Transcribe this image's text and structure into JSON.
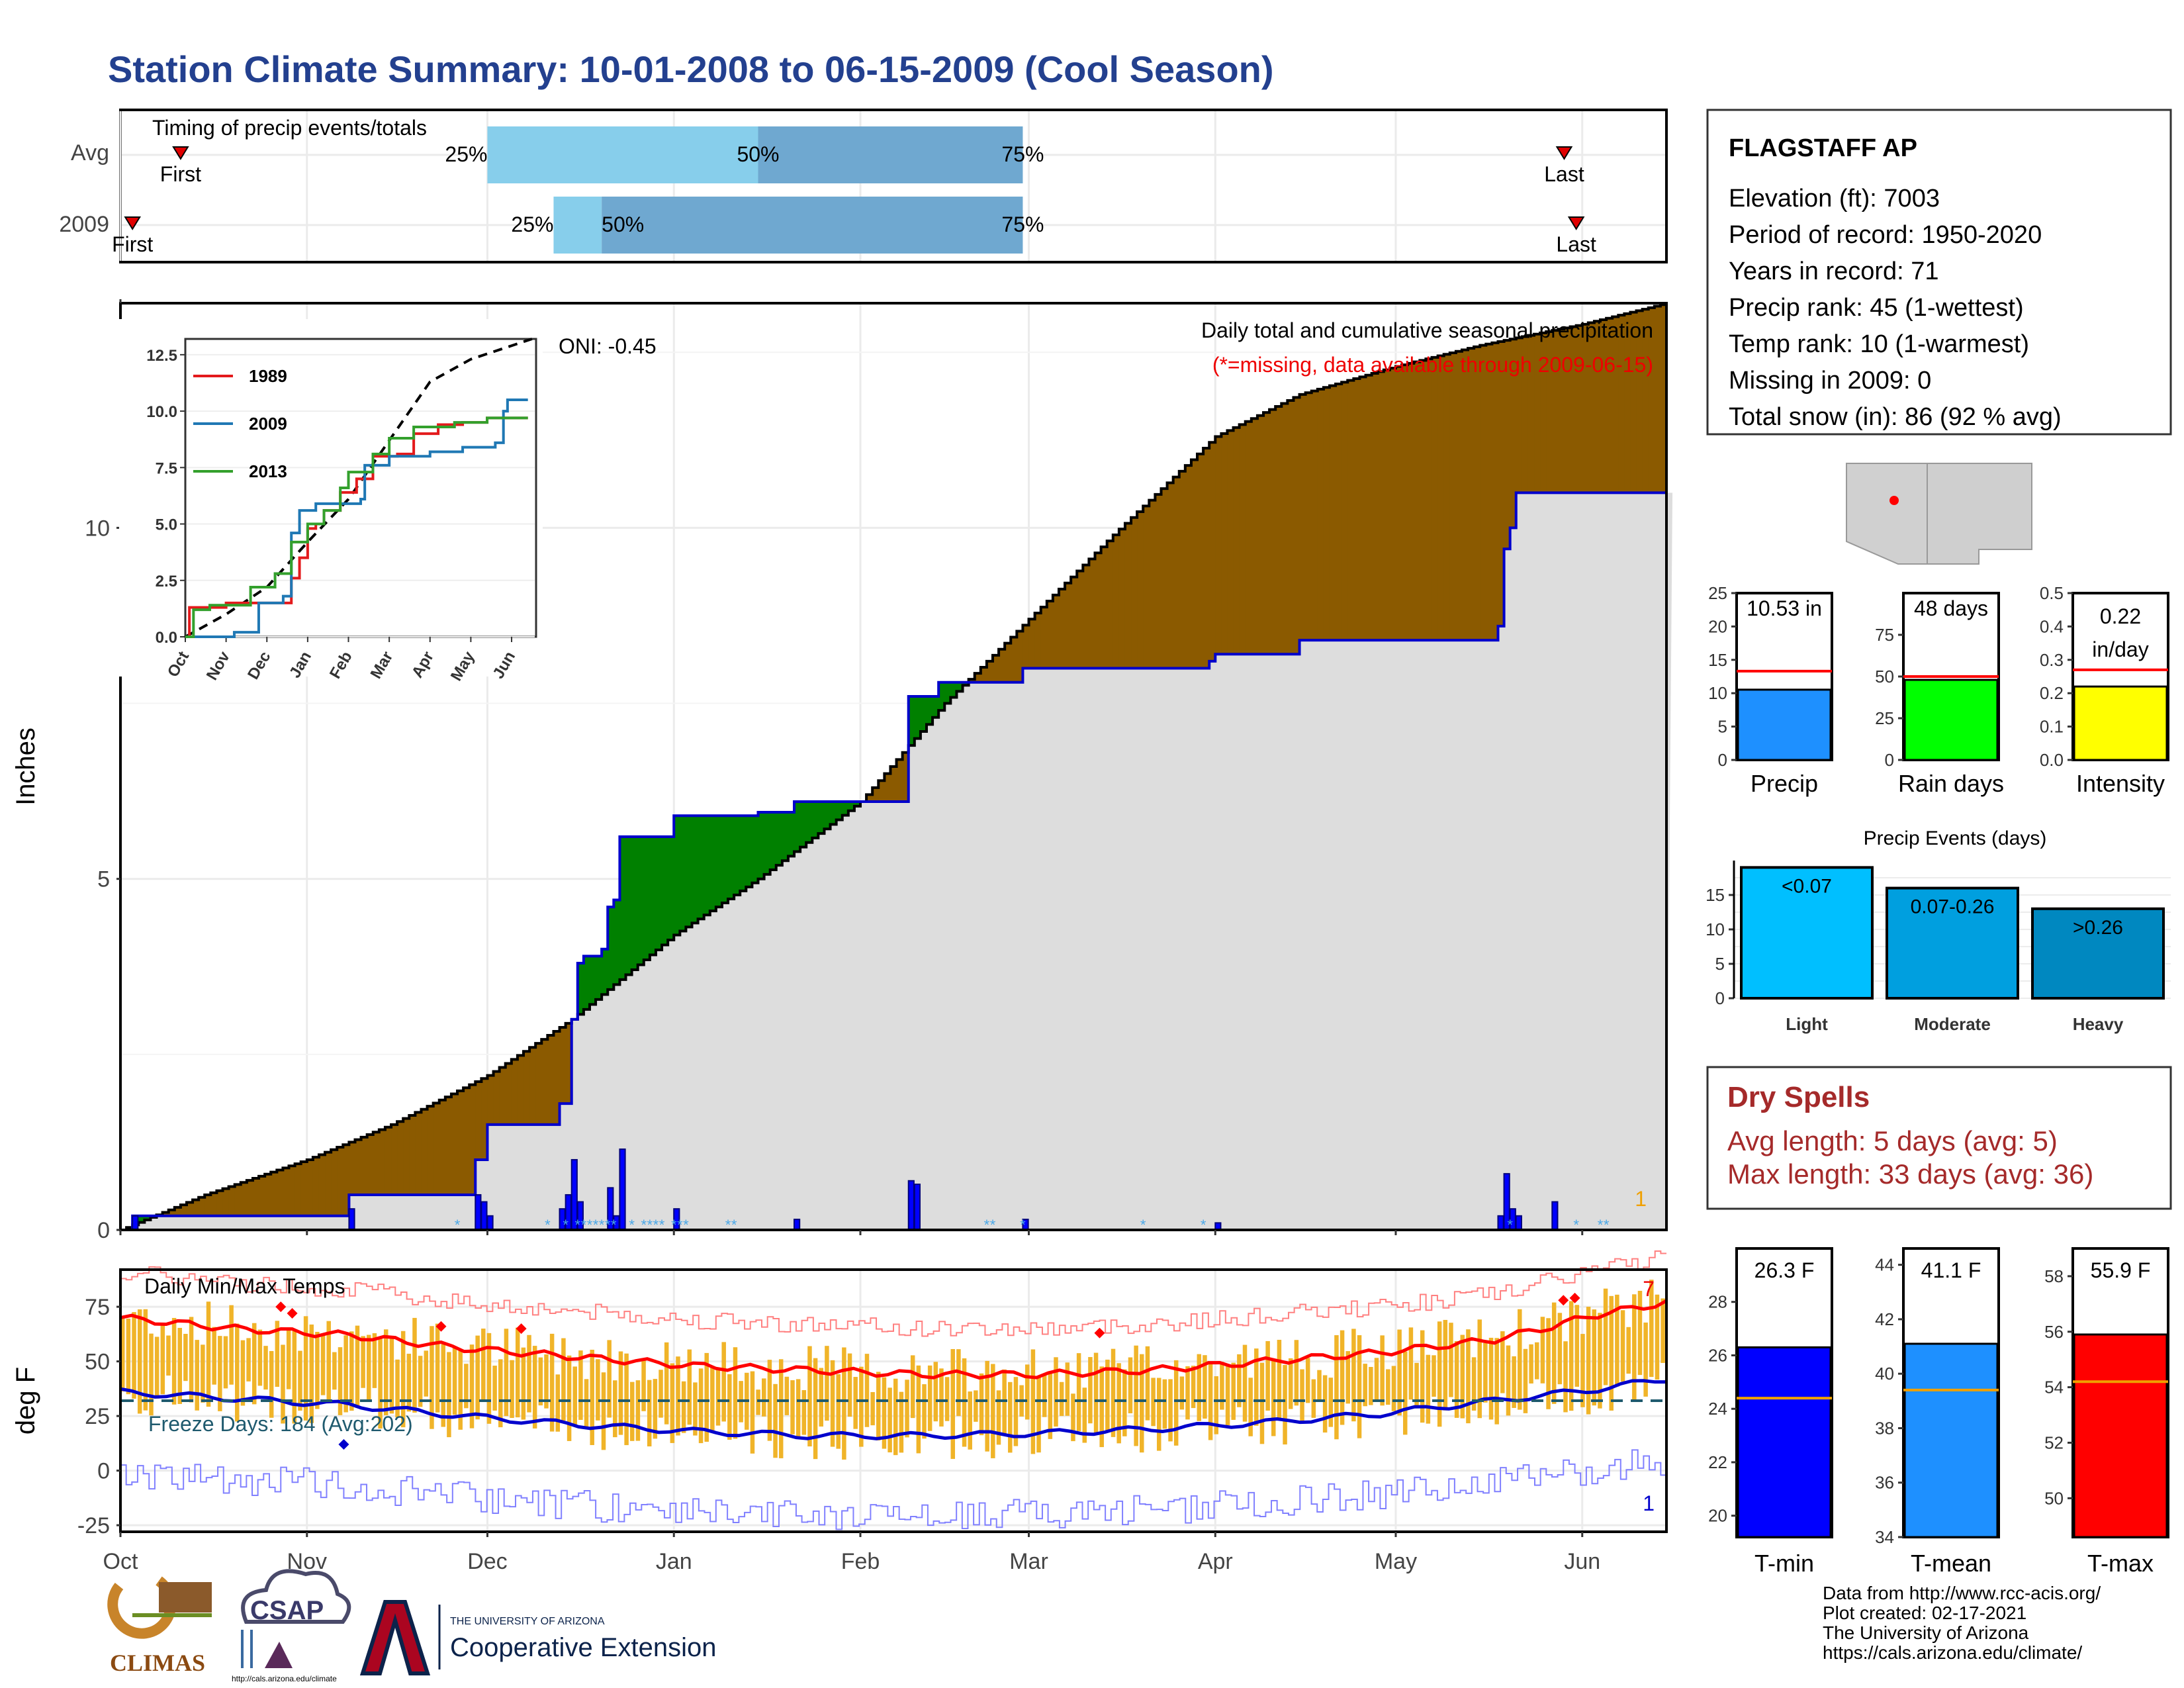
{
  "title": "Station Climate Summary: 10-01-2008 to 06-15-2009 (Cool Season)",
  "timing": {
    "label": "Timing of precip events/totals",
    "rows": [
      {
        "name": "Avg",
        "first_label": "First",
        "last_label": "Last",
        "first_date": "2008-10-11",
        "last_date": "2009-05-29",
        "q25": "2008-12-01",
        "q50": "2009-01-15",
        "q75": "2009-02-28",
        "p25_label": "25%",
        "p50_label": "50%",
        "p75_label": "75%"
      },
      {
        "name": "2009",
        "first_label": "First",
        "last_label": "Last",
        "first_date": "2008-10-03",
        "last_date": "2009-05-31",
        "q25": "2008-12-12",
        "q50": "2008-12-20",
        "q75": "2009-02-28",
        "p25_label": "25%",
        "p50_label": "50%",
        "p75_label": "75%"
      }
    ],
    "colors": {
      "early": "#87ceeb",
      "late": "#6fa8d0",
      "marker": "#e00000"
    }
  },
  "precip": {
    "ylabel": "Inches",
    "y_ticks": [
      "0",
      "5",
      "10"
    ],
    "x_ticks": [
      "Oct",
      "Nov",
      "Dec",
      "Jan",
      "Feb",
      "Mar",
      "Apr",
      "May",
      "Jun"
    ],
    "annot_title": "Daily total and cumulative seasonal precipitation",
    "annot_missing": "(*=missing, data available through 2009-06-15)",
    "oni": "ONI: -0.45",
    "corner_label": "1",
    "colors": {
      "deficit": "#8b5a00",
      "surplus": "#008000",
      "observed": "#dddddd",
      "line": "#0000cc",
      "daily": "#0000ff"
    },
    "chart_data": {
      "type": "area",
      "x_range": [
        "2008-10-01",
        "2009-06-15"
      ],
      "y_range": [
        0,
        13.2
      ],
      "avg_cumulative": [
        {
          "x": "2008-10-01",
          "y": 0.0
        },
        {
          "x": "2008-10-15",
          "y": 0.5
        },
        {
          "x": "2008-11-01",
          "y": 1.0
        },
        {
          "x": "2008-11-15",
          "y": 1.5
        },
        {
          "x": "2008-12-01",
          "y": 2.2
        },
        {
          "x": "2008-12-15",
          "y": 3.0
        },
        {
          "x": "2009-01-01",
          "y": 4.2
        },
        {
          "x": "2009-01-15",
          "y": 5.0
        },
        {
          "x": "2009-02-01",
          "y": 6.1
        },
        {
          "x": "2009-02-15",
          "y": 7.5
        },
        {
          "x": "2009-03-01",
          "y": 8.7
        },
        {
          "x": "2009-03-15",
          "y": 9.9
        },
        {
          "x": "2009-04-01",
          "y": 11.3
        },
        {
          "x": "2009-04-15",
          "y": 11.9
        },
        {
          "x": "2009-05-01",
          "y": 12.3
        },
        {
          "x": "2009-05-15",
          "y": 12.6
        },
        {
          "x": "2009-06-01",
          "y": 12.9
        },
        {
          "x": "2009-06-15",
          "y": 13.2
        }
      ],
      "cumulative_2009": [
        {
          "x": "2008-10-01",
          "y": 0.0
        },
        {
          "x": "2008-10-03",
          "y": 0.2
        },
        {
          "x": "2008-11-07",
          "y": 0.2
        },
        {
          "x": "2008-11-08",
          "y": 0.5
        },
        {
          "x": "2008-11-28",
          "y": 0.5
        },
        {
          "x": "2008-11-29",
          "y": 1.0
        },
        {
          "x": "2008-12-01",
          "y": 1.5
        },
        {
          "x": "2008-12-12",
          "y": 1.5
        },
        {
          "x": "2008-12-13",
          "y": 1.8
        },
        {
          "x": "2008-12-15",
          "y": 3.0
        },
        {
          "x": "2008-12-16",
          "y": 3.8
        },
        {
          "x": "2008-12-17",
          "y": 3.9
        },
        {
          "x": "2008-12-20",
          "y": 4.0
        },
        {
          "x": "2008-12-21",
          "y": 4.6
        },
        {
          "x": "2008-12-22",
          "y": 4.7
        },
        {
          "x": "2008-12-23",
          "y": 5.6
        },
        {
          "x": "2008-12-31",
          "y": 5.6
        },
        {
          "x": "2009-01-01",
          "y": 5.9
        },
        {
          "x": "2009-01-10",
          "y": 5.9
        },
        {
          "x": "2009-01-15",
          "y": 5.95
        },
        {
          "x": "2009-01-20",
          "y": 5.95
        },
        {
          "x": "2009-01-21",
          "y": 6.1
        },
        {
          "x": "2009-02-08",
          "y": 6.1
        },
        {
          "x": "2009-02-09",
          "y": 7.6
        },
        {
          "x": "2009-02-14",
          "y": 7.8
        },
        {
          "x": "2009-02-27",
          "y": 7.8
        },
        {
          "x": "2009-02-28",
          "y": 8.0
        },
        {
          "x": "2009-03-31",
          "y": 8.1
        },
        {
          "x": "2009-04-01",
          "y": 8.2
        },
        {
          "x": "2009-04-15",
          "y": 8.4
        },
        {
          "x": "2009-05-17",
          "y": 8.4
        },
        {
          "x": "2009-05-18",
          "y": 8.6
        },
        {
          "x": "2009-05-19",
          "y": 9.7
        },
        {
          "x": "2009-05-20",
          "y": 10.0
        },
        {
          "x": "2009-05-21",
          "y": 10.5
        },
        {
          "x": "2009-06-15",
          "y": 10.5
        }
      ],
      "daily_2009": [
        {
          "x": "2008-10-03",
          "y": 0.2
        },
        {
          "x": "2008-11-08",
          "y": 0.3
        },
        {
          "x": "2008-11-29",
          "y": 0.5
        },
        {
          "x": "2008-11-30",
          "y": 0.4
        },
        {
          "x": "2008-12-01",
          "y": 0.2
        },
        {
          "x": "2008-12-13",
          "y": 0.3
        },
        {
          "x": "2008-12-14",
          "y": 0.5
        },
        {
          "x": "2008-12-15",
          "y": 1.0
        },
        {
          "x": "2008-12-16",
          "y": 0.4
        },
        {
          "x": "2008-12-21",
          "y": 0.6
        },
        {
          "x": "2008-12-22",
          "y": 0.2
        },
        {
          "x": "2008-12-23",
          "y": 1.15
        },
        {
          "x": "2009-01-01",
          "y": 0.3
        },
        {
          "x": "2009-01-21",
          "y": 0.15
        },
        {
          "x": "2009-02-09",
          "y": 0.7
        },
        {
          "x": "2009-02-10",
          "y": 0.65
        },
        {
          "x": "2009-02-28",
          "y": 0.15
        },
        {
          "x": "2009-04-01",
          "y": 0.1
        },
        {
          "x": "2009-05-18",
          "y": 0.2
        },
        {
          "x": "2009-05-19",
          "y": 0.8
        },
        {
          "x": "2009-05-20",
          "y": 0.3
        },
        {
          "x": "2009-05-21",
          "y": 0.2
        },
        {
          "x": "2009-05-27",
          "y": 0.4
        }
      ]
    }
  },
  "inset": {
    "y_ticks": [
      "0.0",
      "2.5",
      "5.0",
      "7.5",
      "10.0",
      "12.5"
    ],
    "x_ticks": [
      "Oct",
      "Nov",
      "Dec",
      "Jan",
      "Feb",
      "Mar",
      "Apr",
      "May",
      "Jun"
    ],
    "chart_data": {
      "type": "line",
      "y_range": [
        0,
        13.2
      ],
      "series": [
        {
          "name": "1989",
          "color": "#e31a1c",
          "values": [
            [
              0,
              0
            ],
            [
              0.1,
              1.3
            ],
            [
              0.9,
              1.3
            ],
            [
              1.0,
              1.5
            ],
            [
              2.6,
              2.6
            ],
            [
              2.8,
              3.5
            ],
            [
              3.0,
              4.8
            ],
            [
              3.2,
              5.0
            ],
            [
              3.4,
              5.6
            ],
            [
              3.8,
              6.4
            ],
            [
              4.2,
              7.0
            ],
            [
              4.6,
              8.0
            ],
            [
              5.2,
              8.1
            ],
            [
              5.6,
              9.0
            ],
            [
              6.2,
              9.4
            ],
            [
              6.8,
              9.5
            ],
            [
              7.4,
              9.7
            ],
            [
              8.4,
              9.7
            ]
          ]
        },
        {
          "name": "2009",
          "color": "#1f78b4",
          "values": [
            [
              0,
              0
            ],
            [
              1.2,
              0.2
            ],
            [
              1.8,
              1.5
            ],
            [
              2.4,
              1.8
            ],
            [
              2.6,
              4.6
            ],
            [
              2.8,
              5.6
            ],
            [
              3.2,
              5.9
            ],
            [
              4.3,
              6.1
            ],
            [
              4.4,
              7.6
            ],
            [
              5.0,
              8.0
            ],
            [
              6.0,
              8.2
            ],
            [
              6.8,
              8.4
            ],
            [
              7.6,
              8.6
            ],
            [
              7.8,
              10.0
            ],
            [
              7.9,
              10.5
            ],
            [
              8.4,
              10.5
            ]
          ]
        },
        {
          "name": "2013",
          "color": "#33a02c",
          "values": [
            [
              0,
              0
            ],
            [
              0.2,
              1.2
            ],
            [
              0.6,
              1.4
            ],
            [
              1.6,
              2.2
            ],
            [
              2.2,
              2.8
            ],
            [
              2.6,
              4.2
            ],
            [
              3.0,
              5.0
            ],
            [
              3.4,
              5.6
            ],
            [
              3.8,
              6.6
            ],
            [
              4.0,
              7.3
            ],
            [
              4.6,
              8.1
            ],
            [
              5.0,
              8.8
            ],
            [
              5.6,
              9.3
            ],
            [
              6.6,
              9.5
            ],
            [
              7.4,
              9.7
            ],
            [
              8.4,
              9.7
            ]
          ]
        }
      ],
      "avg_dashed": [
        [
          0,
          0
        ],
        [
          1,
          1.0
        ],
        [
          2,
          2.2
        ],
        [
          3,
          4.2
        ],
        [
          4,
          6.1
        ],
        [
          5,
          8.7
        ],
        [
          6,
          11.3
        ],
        [
          7,
          12.3
        ],
        [
          8,
          12.9
        ],
        [
          8.5,
          13.2
        ]
      ]
    }
  },
  "temps": {
    "ylabel": "deg F",
    "y_ticks": [
      "-25",
      "0",
      "25",
      "50",
      "75"
    ],
    "x_ticks": [
      "Oct",
      "Nov",
      "Dec",
      "Jan",
      "Feb",
      "Mar",
      "Apr",
      "May",
      "Jun"
    ],
    "label": "Daily Min/Max Temps",
    "freeze": "Freeze Days: 184 (Avg:202)",
    "corner_top": "7",
    "corner_bottom": "1",
    "y_range": [
      -28,
      92
    ],
    "freeze_line": 32,
    "avg_max_curve": [
      [
        0,
        70
      ],
      [
        20,
        65
      ],
      [
        40,
        62
      ],
      [
        60,
        56
      ],
      [
        80,
        52
      ],
      [
        100,
        48
      ],
      [
        120,
        46
      ],
      [
        140,
        44
      ],
      [
        160,
        44
      ],
      [
        180,
        46
      ],
      [
        200,
        50
      ],
      [
        220,
        54
      ],
      [
        240,
        60
      ],
      [
        250,
        66
      ],
      [
        257,
        71
      ],
      [
        270,
        77
      ]
    ],
    "avg_min_curve": [
      [
        0,
        36
      ],
      [
        20,
        33
      ],
      [
        40,
        30
      ],
      [
        60,
        25
      ],
      [
        80,
        21
      ],
      [
        100,
        18
      ],
      [
        120,
        16
      ],
      [
        140,
        16
      ],
      [
        160,
        17
      ],
      [
        180,
        19
      ],
      [
        200,
        22
      ],
      [
        220,
        26
      ],
      [
        240,
        32
      ],
      [
        257,
        37
      ],
      [
        270,
        42
      ]
    ],
    "colors": {
      "bars": "#f0b429",
      "max_line": "#ff0000",
      "min_line": "#0000cc",
      "freeze": "#1f5a6e"
    }
  },
  "station": {
    "name": "FLAGSTAFF AP",
    "lines": [
      "Elevation (ft): 7003",
      "Period of record: 1950-2020",
      "Years in record: 71",
      "Precip rank: 45 (1-wettest)",
      "Temp rank: 10 (1-warmest)",
      "Missing in 2009: 0",
      "Total snow (in): 86 (92 % avg)"
    ]
  },
  "mini_bars": [
    {
      "label": "Precip",
      "value_text": "10.53 in",
      "value": 10.53,
      "avg": 13.3,
      "max": 25,
      "ticks": [
        "0",
        "5",
        "10",
        "15",
        "20",
        "25"
      ],
      "color": "#1e90ff"
    },
    {
      "label": "Rain days",
      "value_text": "48 days",
      "value": 48,
      "avg": 50,
      "max": 100,
      "ticks": [
        "0",
        "25",
        "50",
        "75"
      ],
      "color": "#00ff00"
    },
    {
      "label": "Intensity",
      "value_text": "0.22",
      "value_text2": "in/day",
      "value": 0.22,
      "avg": 0.27,
      "max": 0.5,
      "ticks": [
        "0.0",
        "0.1",
        "0.2",
        "0.3",
        "0.4",
        "0.5"
      ],
      "color": "#ffff00"
    }
  ],
  "events": {
    "title": "Precip Events (days)",
    "ticks": [
      "0",
      "5",
      "10",
      "15"
    ],
    "chart_data": {
      "type": "bar",
      "categories": [
        "Light",
        "Moderate",
        "Heavy"
      ],
      "values": [
        19,
        16,
        13
      ],
      "bar_labels": [
        "<0.07",
        "0.07-0.26",
        ">0.26"
      ],
      "colors": [
        "#00bfff",
        "#009fdf",
        "#0088c0"
      ],
      "ylim": [
        0,
        20
      ]
    }
  },
  "dry": {
    "title": "Dry Spells",
    "avg": "Avg length: 5 days (avg: 5)",
    "max": "Max length: 33 days (avg: 36)"
  },
  "temp_bars": [
    {
      "label": "T-min",
      "value_text": "26.3 F",
      "value": 26.3,
      "avg": 24.4,
      "lo": 19.2,
      "hi": 30,
      "ticks": [
        "20",
        "22",
        "24",
        "26",
        "28"
      ],
      "color": "#0000ff"
    },
    {
      "label": "T-mean",
      "value_text": "41.1 F",
      "value": 41.1,
      "avg": 39.4,
      "lo": 34,
      "hi": 44.6,
      "ticks": [
        "34",
        "36",
        "38",
        "40",
        "42",
        "44"
      ],
      "color": "#1e90ff"
    },
    {
      "label": "T-max",
      "value_text": "55.9 F",
      "value": 55.9,
      "avg": 54.2,
      "lo": 48.6,
      "hi": 59,
      "ticks": [
        "50",
        "52",
        "54",
        "56",
        "58"
      ],
      "color": "#ff0000"
    }
  ],
  "footer": {
    "credits": [
      "Data from http://www.rcc-acis.org/",
      "Plot created: 02-17-2021",
      "The University of Arizona",
      "https://cals.arizona.edu/climate/"
    ],
    "climas": "CLIMAS",
    "csap": "CSAP",
    "csap_url": "http://cals.arizona.edu/climate",
    "ua_top": "THE UNIVERSITY OF ARIZONA",
    "ua_bottom": "Cooperative Extension"
  }
}
